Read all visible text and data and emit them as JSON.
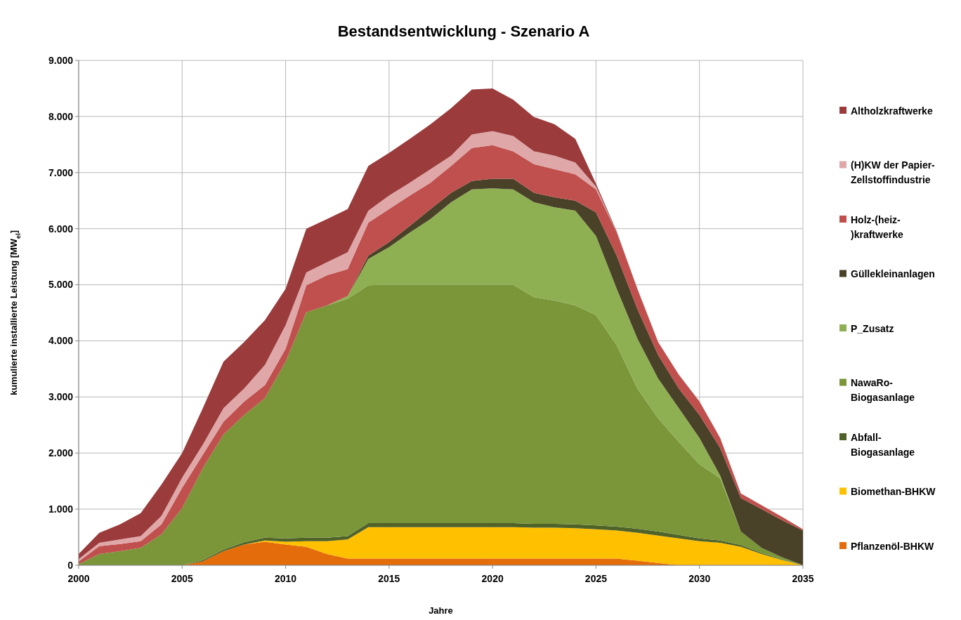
{
  "chart_data": {
    "type": "area",
    "stacked": true,
    "title": "Bestandsentwicklung - Szenario A",
    "xlabel": "Jahre",
    "ylabel": "kumulierte installierte Leistung [MW$_{el}$]",
    "x": [
      2000,
      2001,
      2002,
      2003,
      2004,
      2005,
      2006,
      2007,
      2008,
      2009,
      2010,
      2011,
      2012,
      2013,
      2014,
      2015,
      2016,
      2017,
      2018,
      2019,
      2020,
      2021,
      2022,
      2023,
      2024,
      2025,
      2026,
      2027,
      2028,
      2029,
      2030,
      2031,
      2032,
      2033,
      2034,
      2035
    ],
    "xlim": [
      2000,
      2035
    ],
    "xticks": [
      2000,
      2005,
      2010,
      2015,
      2020,
      2025,
      2030,
      2035
    ],
    "ylim": [
      0,
      9000
    ],
    "yticks": [
      {
        "value": 0,
        "label": "0"
      },
      {
        "value": 1000,
        "label": "1.000"
      },
      {
        "value": 2000,
        "label": "2.000"
      },
      {
        "value": 3000,
        "label": "3.000"
      },
      {
        "value": 4000,
        "label": "4.000"
      },
      {
        "value": 5000,
        "label": "5.000"
      },
      {
        "value": 6000,
        "label": "6.000"
      },
      {
        "value": 7000,
        "label": "7.000"
      },
      {
        "value": 8000,
        "label": "8.000"
      },
      {
        "value": 9000,
        "label": "9.000"
      }
    ],
    "grid": true,
    "legend": "right",
    "series": [
      {
        "name": "Pflanzenöl-BHKW",
        "color": "#e46c0a",
        "values": [
          0,
          0,
          0,
          0,
          0,
          0,
          70,
          250,
          370,
          420,
          370,
          330,
          200,
          120,
          120,
          120,
          120,
          120,
          120,
          120,
          120,
          120,
          120,
          120,
          120,
          120,
          120,
          80,
          40,
          0,
          0,
          0,
          0,
          0,
          0,
          0
        ]
      },
      {
        "name": "Biomethan-BHKW",
        "color": "#ffc000",
        "values": [
          0,
          0,
          0,
          0,
          0,
          0,
          0,
          0,
          0,
          20,
          50,
          100,
          230,
          340,
          560,
          560,
          560,
          560,
          560,
          560,
          560,
          560,
          550,
          550,
          540,
          520,
          500,
          500,
          490,
          480,
          430,
          400,
          330,
          200,
          90,
          0
        ]
      },
      {
        "name": "Abfall-Biogasanlage",
        "color": "#4f6228",
        "values": [
          0,
          0,
          0,
          0,
          0,
          0,
          20,
          30,
          40,
          50,
          60,
          60,
          60,
          60,
          70,
          70,
          70,
          70,
          70,
          70,
          70,
          70,
          70,
          70,
          70,
          70,
          70,
          70,
          70,
          60,
          50,
          40,
          30,
          20,
          10,
          0
        ]
      },
      {
        "name": "NawaRo-Biogasanlage",
        "color": "#7a9639",
        "values": [
          20,
          200,
          250,
          310,
          550,
          1020,
          1640,
          2050,
          2270,
          2490,
          3150,
          4020,
          4140,
          4230,
          4240,
          4250,
          4250,
          4250,
          4250,
          4250,
          4250,
          4250,
          4040,
          3980,
          3900,
          3750,
          3230,
          2500,
          2020,
          1660,
          1320,
          1110,
          240,
          90,
          40,
          0
        ]
      },
      {
        "name": "P_Zusatz",
        "color": "#8fb052",
        "values": [
          0,
          0,
          0,
          0,
          0,
          0,
          0,
          0,
          0,
          0,
          0,
          0,
          0,
          50,
          470,
          670,
          930,
          1170,
          1470,
          1700,
          1720,
          1700,
          1690,
          1660,
          1690,
          1410,
          1010,
          890,
          710,
          600,
          470,
          50,
          0,
          0,
          0,
          0
        ]
      },
      {
        "name": "Güllekleinanlagen",
        "color": "#4a4228",
        "values": [
          0,
          0,
          0,
          0,
          0,
          0,
          0,
          0,
          0,
          0,
          0,
          0,
          0,
          0,
          60,
          90,
          120,
          180,
          170,
          150,
          170,
          190,
          170,
          180,
          180,
          420,
          590,
          530,
          420,
          350,
          410,
          490,
          600,
          690,
          660,
          620
        ]
      },
      {
        "name": "Holz-(heiz-)kraftwerke",
        "color": "#c0504d",
        "values": [
          50,
          140,
          130,
          120,
          180,
          360,
          240,
          230,
          240,
          230,
          230,
          480,
          540,
          480,
          590,
          590,
          540,
          470,
          480,
          590,
          600,
          490,
          510,
          500,
          470,
          410,
          410,
          360,
          230,
          250,
          240,
          180,
          80,
          70,
          60,
          20
        ]
      },
      {
        "name": "(H)KW der Papier-Zellstoffindustrie",
        "color": "#e0a7a9",
        "values": [
          40,
          60,
          80,
          90,
          150,
          180,
          180,
          240,
          230,
          360,
          420,
          230,
          230,
          300,
          210,
          240,
          230,
          240,
          180,
          240,
          250,
          270,
          230,
          240,
          210,
          50,
          0,
          0,
          0,
          0,
          0,
          0,
          0,
          0,
          0,
          0
        ]
      },
      {
        "name": "Altholzkraftwerke",
        "color": "#9b3b3b",
        "values": [
          90,
          180,
          270,
          410,
          560,
          440,
          650,
          830,
          830,
          800,
          650,
          780,
          770,
          770,
          800,
          760,
          780,
          800,
          850,
          800,
          760,
          650,
          610,
          560,
          420,
          50,
          20,
          0,
          0,
          0,
          0,
          0,
          0,
          0,
          0,
          0
        ]
      }
    ]
  }
}
